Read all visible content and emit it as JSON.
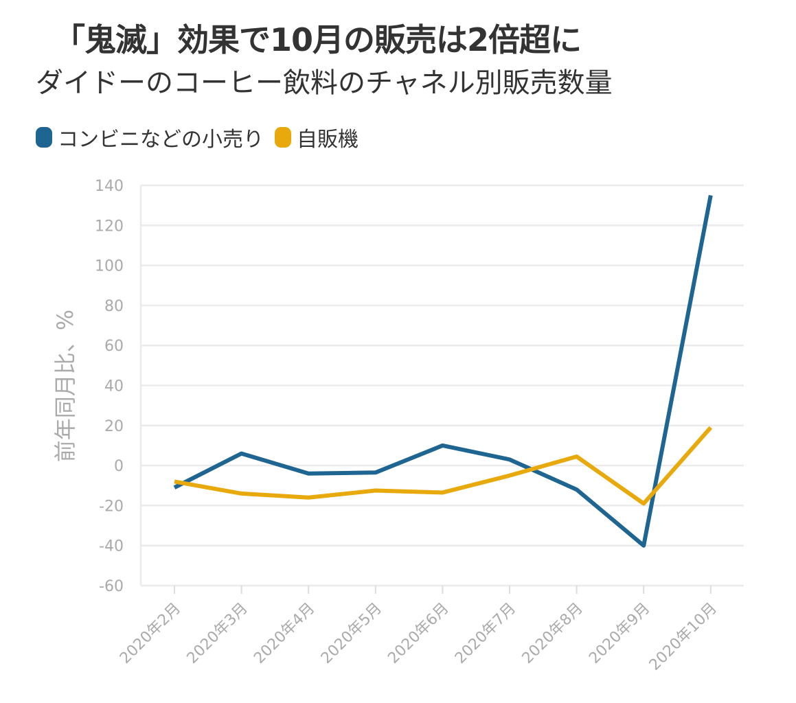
{
  "chart_data": {
    "type": "line",
    "title": "「鬼滅」効果で10月の販売は2倍超に",
    "subtitle": "ダイドーのコーヒー飲料のチャネル別販売数量",
    "ylabel": "前年同月比、%",
    "xlabel": "",
    "ylim": [
      -60,
      140
    ],
    "yticks": [
      140,
      120,
      100,
      80,
      60,
      40,
      20,
      0,
      -20,
      -40,
      -60
    ],
    "categories": [
      "2020年2月",
      "2020年3月",
      "2020年4月",
      "2020年5月",
      "2020年6月",
      "2020年7月",
      "2020年8月",
      "2020年9月",
      "2020年10月"
    ],
    "series": [
      {
        "name": "コンビニなどの小売り",
        "color": "#1f6591",
        "values": [
          -11,
          6,
          -4,
          -3.5,
          10,
          3,
          -12,
          -40,
          135
        ]
      },
      {
        "name": "自販機",
        "color": "#e8a90c",
        "values": [
          -8,
          -14,
          -16,
          -12.5,
          -13.5,
          -5,
          4.5,
          -19,
          19
        ]
      }
    ],
    "grid": true,
    "legend_position": "top-left"
  }
}
